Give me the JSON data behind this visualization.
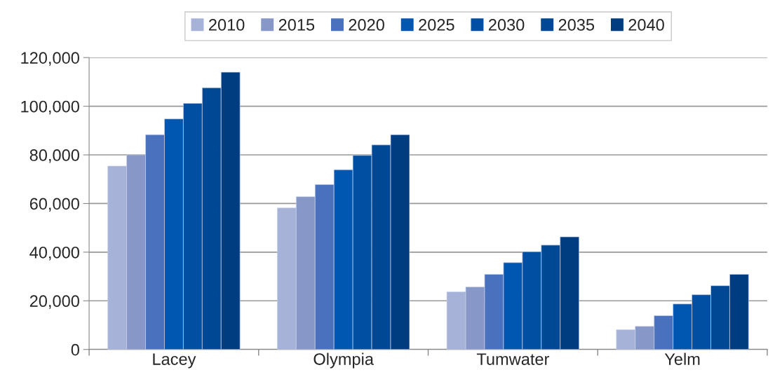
{
  "chart_data": {
    "type": "bar",
    "categories": [
      "Lacey",
      "Olympia",
      "Tumwater",
      "Yelm"
    ],
    "series": [
      {
        "name": "2010",
        "color": "#a6b2d8",
        "values": [
          75400,
          58200,
          23700,
          8100
        ]
      },
      {
        "name": "2015",
        "color": "#8697c8",
        "values": [
          80000,
          62800,
          25700,
          9500
        ]
      },
      {
        "name": "2020",
        "color": "#4a71bd",
        "values": [
          88300,
          67800,
          30900,
          13900
        ]
      },
      {
        "name": "2025",
        "color": "#0057b2",
        "values": [
          94800,
          73900,
          35700,
          18700
        ]
      },
      {
        "name": "2030",
        "color": "#004fa2",
        "values": [
          101200,
          79800,
          40200,
          22500
        ]
      },
      {
        "name": "2035",
        "color": "#004893",
        "values": [
          107600,
          84100,
          42900,
          26200
        ]
      },
      {
        "name": "2040",
        "color": "#003d80",
        "values": [
          114000,
          88300,
          46300,
          30900
        ]
      }
    ],
    "ylim": [
      0,
      120000
    ],
    "yticks": [
      {
        "value": 0,
        "label": "0"
      },
      {
        "value": 20000,
        "label": "20,000"
      },
      {
        "value": 40000,
        "label": "40,000"
      },
      {
        "value": 60000,
        "label": "60,000"
      },
      {
        "value": 80000,
        "label": "80,000"
      },
      {
        "value": 100000,
        "label": "100,000"
      },
      {
        "value": 120000,
        "label": "120,000"
      }
    ],
    "grid": "y",
    "legend": "top"
  }
}
